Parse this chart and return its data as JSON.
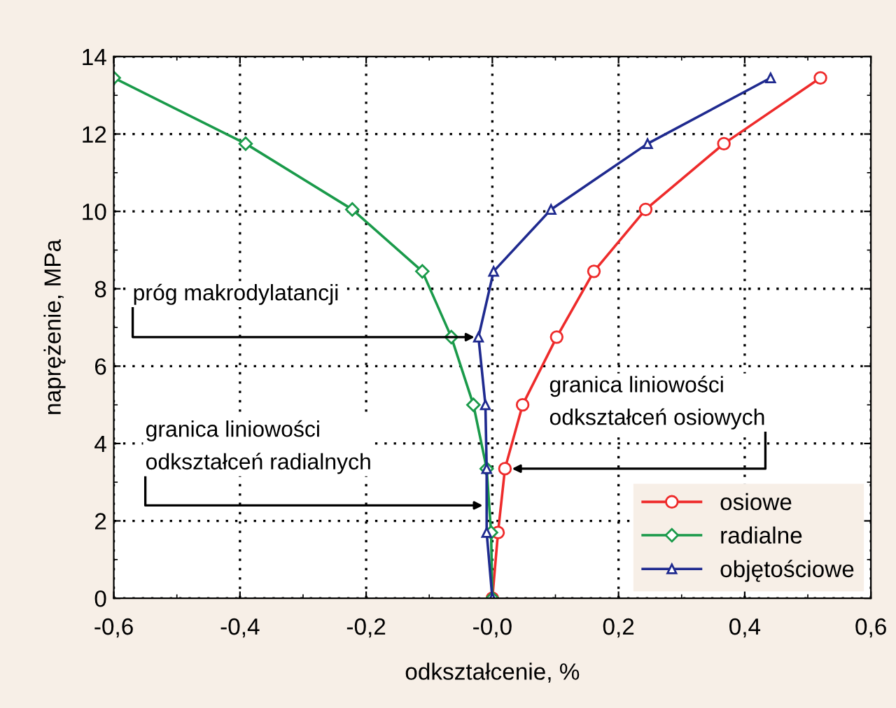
{
  "chart_data": {
    "type": "line",
    "xlabel": "odkształcenie, %",
    "ylabel": "naprężenie, MPa",
    "xlim": [
      -0.6,
      0.6
    ],
    "ylim": [
      0,
      14
    ],
    "xticks": [
      {
        "value": -0.6,
        "label": "-0,6"
      },
      {
        "value": -0.4,
        "label": "-0,4"
      },
      {
        "value": -0.2,
        "label": "-0,2"
      },
      {
        "value": 0,
        "label": "-0,0"
      },
      {
        "value": 0.2,
        "label": "0,2"
      },
      {
        "value": 0.4,
        "label": "0,4"
      },
      {
        "value": 0.6,
        "label": "0,6"
      }
    ],
    "yticks": [
      0,
      2,
      4,
      6,
      8,
      10,
      12,
      14
    ],
    "grid": true,
    "legend": "bottom right",
    "series": [
      {
        "name": "osiowe",
        "color": "#ee2b2b",
        "marker": "circle",
        "x": [
          0,
          0.009,
          0.02,
          0.048,
          0.102,
          0.161,
          0.243,
          0.367,
          0.52
        ],
        "values": [
          0,
          1.7,
          3.35,
          5.0,
          6.75,
          8.45,
          10.05,
          11.75,
          13.45
        ]
      },
      {
        "name": "radialne",
        "color": "#1a9a4a",
        "marker": "diamond",
        "x": [
          0,
          -0.002,
          -0.009,
          -0.03,
          -0.065,
          -0.111,
          -0.222,
          -0.391,
          -0.6
        ],
        "values": [
          0,
          1.7,
          3.35,
          5.0,
          6.75,
          8.45,
          10.05,
          11.75,
          13.45
        ]
      },
      {
        "name": "objętościowe",
        "color": "#1f2a8f",
        "marker": "triangle",
        "x": [
          0,
          -0.009,
          -0.009,
          -0.011,
          -0.022,
          0.002,
          0.093,
          0.246,
          0.441
        ],
        "values": [
          0,
          1.7,
          3.35,
          5.0,
          6.75,
          8.45,
          10.05,
          11.75,
          13.45
        ]
      }
    ],
    "annotations": [
      {
        "text": "próg makrodylatancji",
        "x": -0.025,
        "y": 6.75
      },
      {
        "text": "granica liniowości\nodkształceń radialnych",
        "x": -0.012,
        "y": 2.4
      },
      {
        "text": "granica liniowości\nodkształceń osiowych",
        "x": 0.028,
        "y": 3.35
      }
    ]
  }
}
